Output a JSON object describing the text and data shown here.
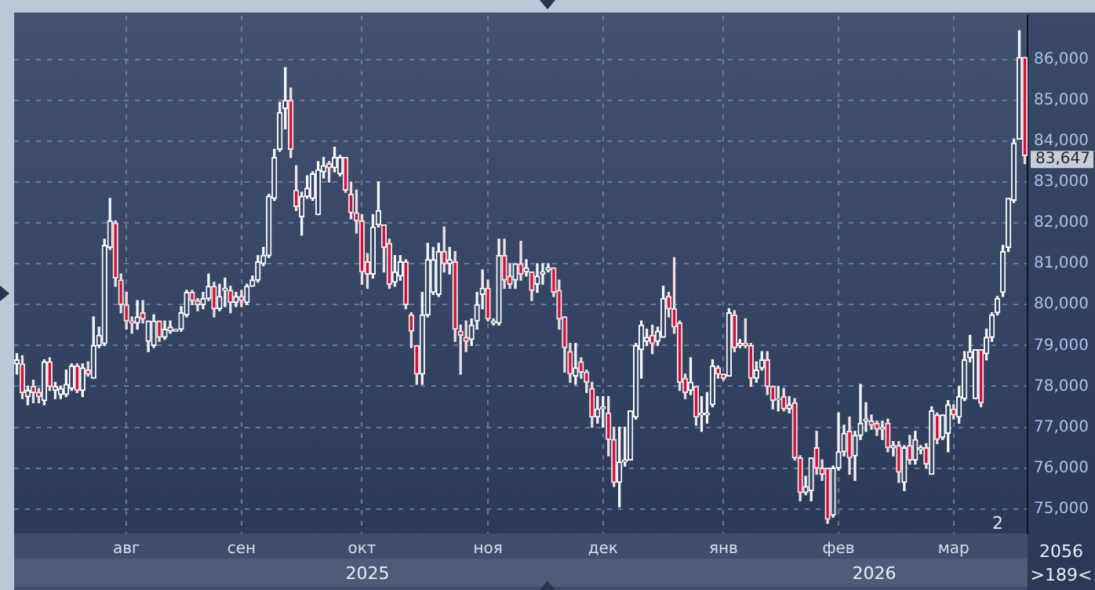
{
  "chart_data": {
    "type": "candlestick",
    "categories": [
      null,
      null,
      null,
      null,
      null,
      null,
      null,
      null,
      null,
      null,
      null,
      null,
      null,
      null,
      null,
      null,
      null,
      null,
      null,
      null,
      "авг",
      null,
      null,
      null,
      null,
      null,
      null,
      null,
      null,
      null,
      null,
      null,
      null,
      null,
      null,
      null,
      null,
      null,
      null,
      null,
      null,
      "сен",
      null,
      null,
      null,
      null,
      null,
      null,
      null,
      null,
      null,
      null,
      null,
      null,
      null,
      null,
      null,
      null,
      null,
      null,
      null,
      null,
      null,
      "окт",
      null,
      null,
      null,
      null,
      null,
      null,
      null,
      null,
      null,
      null,
      null,
      null,
      null,
      null,
      null,
      null,
      null,
      null,
      null,
      null,
      null,
      null,
      "ноя",
      null,
      null,
      null,
      null,
      null,
      null,
      null,
      null,
      null,
      null,
      null,
      null,
      null,
      null,
      null,
      null,
      null,
      null,
      null,
      null,
      "дек",
      null,
      null,
      null,
      null,
      null,
      null,
      null,
      null,
      null,
      null,
      null,
      null,
      null,
      null,
      null,
      null,
      null,
      null,
      null,
      null,
      null,
      "янв",
      null,
      null,
      null,
      null,
      null,
      null,
      null,
      null,
      null,
      null,
      null,
      null,
      null,
      null,
      null,
      null,
      null,
      null,
      null,
      null,
      "фев",
      null,
      null,
      null,
      null,
      null,
      null,
      null,
      null,
      null,
      null,
      null,
      null,
      null,
      null,
      null,
      null,
      null,
      null,
      null,
      null,
      "мар",
      null,
      null,
      null,
      null,
      null,
      null,
      null,
      null,
      null,
      null,
      null,
      null,
      null
    ],
    "ohlc": [
      [
        78550,
        78800,
        78300,
        78650
      ],
      [
        78550,
        78750,
        77700,
        77850
      ],
      [
        77750,
        78000,
        77550,
        77900
      ],
      [
        78000,
        78150,
        77600,
        77850
      ],
      [
        77850,
        77950,
        77600,
        77750
      ],
      [
        77650,
        78650,
        77550,
        78600
      ],
      [
        78600,
        78700,
        77900,
        78000
      ],
      [
        77900,
        78100,
        77700,
        78000
      ],
      [
        77800,
        78000,
        77700,
        77950
      ],
      [
        77800,
        78400,
        77750,
        78050
      ],
      [
        77950,
        78550,
        77900,
        78500
      ],
      [
        78500,
        78550,
        77850,
        77900
      ],
      [
        77900,
        78550,
        77750,
        78450
      ],
      [
        78400,
        78600,
        78250,
        78300
      ],
      [
        78200,
        79700,
        78200,
        79000
      ],
      [
        79000,
        79450,
        78950,
        79250
      ],
      [
        79050,
        81600,
        79000,
        81450
      ],
      [
        81400,
        82600,
        81350,
        82050
      ],
      [
        82000,
        82050,
        80450,
        80650
      ],
      [
        80600,
        80750,
        79800,
        80000
      ],
      [
        80000,
        80300,
        79400,
        79600
      ],
      [
        79600,
        79700,
        79300,
        79550
      ],
      [
        79550,
        80100,
        79400,
        79700
      ],
      [
        79800,
        80100,
        79550,
        79650
      ],
      [
        79100,
        79600,
        78850,
        79600
      ],
      [
        79000,
        79750,
        78950,
        79600
      ],
      [
        79600,
        79600,
        79100,
        79200
      ],
      [
        79200,
        79600,
        79150,
        79400
      ],
      [
        79350,
        79600,
        79300,
        79450
      ],
      [
        79350,
        79400,
        79350,
        79400
      ],
      [
        79400,
        79950,
        79350,
        79800
      ],
      [
        79750,
        80350,
        79700,
        80300
      ],
      [
        80300,
        80350,
        80000,
        80100
      ],
      [
        80100,
        80150,
        79850,
        80000
      ],
      [
        80000,
        80300,
        79900,
        80150
      ],
      [
        80150,
        80750,
        80100,
        80450
      ],
      [
        80450,
        80550,
        79700,
        79900
      ],
      [
        79900,
        80500,
        79850,
        80200
      ],
      [
        80350,
        80650,
        79950,
        80400
      ],
      [
        80350,
        80450,
        79800,
        80050
      ],
      [
        80050,
        80300,
        79950,
        80200
      ],
      [
        80200,
        80350,
        79950,
        80100
      ],
      [
        80050,
        80500,
        80000,
        80450
      ],
      [
        80450,
        80700,
        80450,
        80600
      ],
      [
        80600,
        81200,
        80550,
        81050
      ],
      [
        81000,
        81400,
        80950,
        81200
      ],
      [
        81200,
        82700,
        81150,
        82650
      ],
      [
        82600,
        83800,
        82550,
        83600
      ],
      [
        83800,
        84950,
        83750,
        84700
      ],
      [
        84800,
        85800,
        84300,
        85000
      ],
      [
        85000,
        85300,
        83600,
        83800
      ],
      [
        82800,
        83400,
        82300,
        82400
      ],
      [
        82150,
        82750,
        81700,
        82650
      ],
      [
        82650,
        83150,
        82600,
        82850
      ],
      [
        82600,
        83250,
        82550,
        83200
      ],
      [
        82200,
        83500,
        82200,
        83300
      ],
      [
        83250,
        83600,
        83100,
        83400
      ],
      [
        83450,
        83500,
        83000,
        83350
      ],
      [
        83350,
        83850,
        83250,
        83600
      ],
      [
        83200,
        83650,
        83150,
        83600
      ],
      [
        83600,
        83600,
        82750,
        82800
      ],
      [
        82700,
        83000,
        82100,
        82250
      ],
      [
        82250,
        82800,
        81750,
        82050
      ],
      [
        82050,
        82200,
        80500,
        80800
      ],
      [
        81050,
        81250,
        80400,
        80750
      ],
      [
        80750,
        82200,
        80650,
        81900
      ],
      [
        81950,
        83000,
        81900,
        82300
      ],
      [
        81950,
        81950,
        80800,
        81400
      ],
      [
        81500,
        81600,
        80400,
        80500
      ],
      [
        80550,
        81200,
        80450,
        80800
      ],
      [
        80700,
        81200,
        80600,
        81050
      ],
      [
        81050,
        81100,
        79900,
        80000
      ],
      [
        79750,
        79800,
        78950,
        79350
      ],
      [
        79000,
        79000,
        78050,
        78300
      ],
      [
        78300,
        80300,
        78050,
        79750
      ],
      [
        79750,
        81500,
        79700,
        81100
      ],
      [
        80300,
        81400,
        80250,
        81100
      ],
      [
        80250,
        81500,
        80200,
        81300
      ],
      [
        81300,
        81900,
        80800,
        81000
      ],
      [
        81000,
        81400,
        80750,
        81100
      ],
      [
        81050,
        81300,
        79100,
        79400
      ],
      [
        79350,
        79500,
        78300,
        79250
      ],
      [
        79200,
        79600,
        78850,
        79100
      ],
      [
        79150,
        79650,
        79000,
        79500
      ],
      [
        79600,
        80300,
        79400,
        80000
      ],
      [
        80250,
        80850,
        79900,
        80400
      ],
      [
        80400,
        80600,
        79600,
        79650
      ],
      [
        79550,
        79650,
        79500,
        79600
      ],
      [
        79550,
        81600,
        79500,
        81200
      ],
      [
        81200,
        81600,
        80400,
        80600
      ],
      [
        80700,
        81000,
        80400,
        80500
      ],
      [
        80600,
        81000,
        80400,
        81000
      ],
      [
        81000,
        81550,
        80600,
        80750
      ],
      [
        80800,
        81100,
        80700,
        80900
      ],
      [
        80800,
        80800,
        80100,
        80350
      ],
      [
        80500,
        81000,
        80300,
        80700
      ],
      [
        80750,
        81000,
        80500,
        80800
      ],
      [
        80850,
        81000,
        80800,
        80900
      ],
      [
        80900,
        80900,
        80200,
        80300
      ],
      [
        80350,
        80600,
        79400,
        79650
      ],
      [
        79700,
        79700,
        78350,
        78950
      ],
      [
        78850,
        79050,
        78100,
        78300
      ],
      [
        78250,
        79050,
        78050,
        78450
      ],
      [
        78600,
        78700,
        78200,
        78350
      ],
      [
        78350,
        78400,
        77850,
        78100
      ],
      [
        77950,
        78100,
        77000,
        77250
      ],
      [
        77250,
        77750,
        77100,
        77450
      ],
      [
        77450,
        77750,
        77000,
        77500
      ],
      [
        77350,
        77750,
        76300,
        76700
      ],
      [
        76700,
        77000,
        75550,
        75650
      ],
      [
        75650,
        77000,
        75050,
        76150
      ],
      [
        76150,
        77000,
        76050,
        76200
      ],
      [
        76200,
        77400,
        76200,
        77400
      ],
      [
        77250,
        79050,
        77200,
        79000
      ],
      [
        78900,
        79600,
        78200,
        79500
      ],
      [
        79100,
        79400,
        79000,
        79200
      ],
      [
        79250,
        79500,
        78800,
        79050
      ],
      [
        79100,
        79450,
        79000,
        79350
      ],
      [
        79200,
        80450,
        79200,
        80150
      ],
      [
        80200,
        80300,
        79700,
        79900
      ],
      [
        79900,
        81150,
        79300,
        79450
      ],
      [
        79550,
        79600,
        77900,
        78100
      ],
      [
        78200,
        78300,
        77700,
        77850
      ],
      [
        77900,
        78700,
        77800,
        78100
      ],
      [
        78000,
        78000,
        77050,
        77250
      ],
      [
        77300,
        77750,
        76900,
        77350
      ],
      [
        77300,
        77850,
        77100,
        77350
      ],
      [
        77550,
        78650,
        77500,
        78500
      ],
      [
        78450,
        78500,
        78200,
        78300
      ],
      [
        78300,
        78300,
        78150,
        78200
      ],
      [
        78250,
        79900,
        78250,
        79800
      ],
      [
        79750,
        79850,
        78850,
        78950
      ],
      [
        79000,
        79150,
        78950,
        79050
      ],
      [
        79050,
        79650,
        78950,
        79000
      ],
      [
        79000,
        79050,
        78000,
        78200
      ],
      [
        78200,
        78600,
        78100,
        78400
      ],
      [
        78450,
        78850,
        78400,
        78650
      ],
      [
        78650,
        78850,
        77800,
        78000
      ],
      [
        78000,
        78000,
        77450,
        77650
      ],
      [
        77680,
        78000,
        77400,
        77700
      ],
      [
        77750,
        77950,
        77400,
        77450
      ],
      [
        77450,
        77750,
        77350,
        77550
      ],
      [
        77600,
        77700,
        76200,
        76250
      ],
      [
        76250,
        76300,
        75200,
        75400
      ],
      [
        75400,
        75800,
        75350,
        75550
      ],
      [
        75450,
        76250,
        75200,
        76250
      ],
      [
        76500,
        76900,
        75850,
        76000
      ],
      [
        76000,
        76200,
        75700,
        75850
      ],
      [
        76000,
        76000,
        74650,
        74750
      ],
      [
        74850,
        76050,
        74800,
        76000
      ],
      [
        76000,
        77350,
        75950,
        76400
      ],
      [
        76400,
        77050,
        76300,
        76850
      ],
      [
        76900,
        77250,
        75850,
        76250
      ],
      [
        76300,
        76900,
        75700,
        76800
      ],
      [
        76800,
        78050,
        76700,
        77100
      ],
      [
        77150,
        77600,
        76900,
        77200
      ],
      [
        77150,
        77300,
        76950,
        77050
      ],
      [
        77100,
        77150,
        76800,
        76950
      ],
      [
        76950,
        77150,
        76700,
        77000
      ],
      [
        77100,
        77200,
        76400,
        76500
      ],
      [
        76500,
        76650,
        76300,
        76550
      ],
      [
        76550,
        76650,
        75650,
        75900
      ],
      [
        75650,
        76550,
        75450,
        76500
      ],
      [
        76550,
        76800,
        76100,
        76200
      ],
      [
        76200,
        76900,
        76100,
        76700
      ],
      [
        76450,
        76550,
        76350,
        76500
      ],
      [
        76500,
        76600,
        76000,
        76100
      ],
      [
        75850,
        77500,
        75850,
        77400
      ],
      [
        77300,
        77350,
        76600,
        76700
      ],
      [
        76750,
        77300,
        76700,
        77300
      ],
      [
        76850,
        77650,
        76400,
        77550
      ],
      [
        77450,
        77550,
        77200,
        77300
      ],
      [
        77250,
        78000,
        77100,
        77750
      ],
      [
        77700,
        78850,
        77650,
        78650
      ],
      [
        78700,
        79250,
        78600,
        78850
      ],
      [
        77700,
        78900,
        77700,
        78900
      ],
      [
        78900,
        78900,
        77500,
        77600
      ],
      [
        78800,
        79400,
        78650,
        79200
      ],
      [
        79200,
        79800,
        79100,
        79750
      ],
      [
        79800,
        80200,
        79750,
        80150
      ],
      [
        80300,
        81450,
        80200,
        81300
      ],
      [
        81400,
        82600,
        81300,
        82600
      ],
      [
        82550,
        84050,
        82500,
        83950
      ],
      [
        84050,
        86700,
        84050,
        86050
      ],
      [
        86050,
        86050,
        83450,
        83647
      ]
    ],
    "ylim": [
      74400,
      87070
    ],
    "yticks": [
      {
        "value": 75000,
        "label": "75,000"
      },
      {
        "value": 76000,
        "label": "76,000"
      },
      {
        "value": 77000,
        "label": "77,000"
      },
      {
        "value": 78000,
        "label": "78,000"
      },
      {
        "value": 79000,
        "label": "79,000"
      },
      {
        "value": 80000,
        "label": "80,000"
      },
      {
        "value": 81000,
        "label": "81,000"
      },
      {
        "value": 82000,
        "label": "82,000"
      },
      {
        "value": 83000,
        "label": "83,000"
      },
      {
        "value": 84000,
        "label": "84,000"
      },
      {
        "value": 85000,
        "label": "85,000"
      },
      {
        "value": 86000,
        "label": "86,000"
      }
    ],
    "grid": true,
    "annotations": [
      "2025",
      "2026",
      "83,647",
      "2",
      "2056",
      ">189<"
    ]
  }
}
